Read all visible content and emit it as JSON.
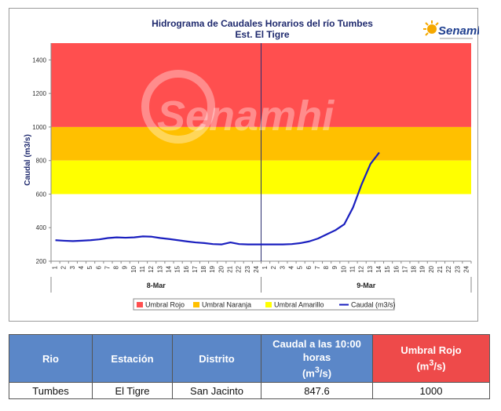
{
  "chart_data": {
    "type": "line",
    "title": "Hidrograma de Caudales Horarios del río Tumbes",
    "subtitle": "Est. El Tigre",
    "ylabel": "Caudal  (m3/s)",
    "ylim": [
      200,
      1500
    ],
    "yticks": [
      200,
      400,
      600,
      800,
      1000,
      1200,
      1400
    ],
    "day_labels": [
      "8-Mar",
      "9-Mar"
    ],
    "x_tick_labels": [
      "1",
      "2",
      "3",
      "4",
      "5",
      "6",
      "7",
      "8",
      "9",
      "10",
      "11",
      "12",
      "13",
      "14",
      "15",
      "16",
      "17",
      "18",
      "19",
      "20",
      "21",
      "22",
      "23",
      "24",
      "1",
      "2",
      "3",
      "4",
      "5",
      "6",
      "7",
      "8",
      "9",
      "10",
      "11",
      "12",
      "13",
      "14",
      "15",
      "16",
      "17",
      "18",
      "19",
      "20",
      "21",
      "22",
      "23",
      "24"
    ],
    "bands": [
      {
        "name": "Umbral Rojo",
        "from": 1000,
        "to": 1500,
        "color": "#ff4f4f"
      },
      {
        "name": "Umbral Naranja",
        "from": 800,
        "to": 1000,
        "color": "#ffc000"
      },
      {
        "name": "Umbral Amarillo",
        "from": 600,
        "to": 800,
        "color": "#ffff00"
      }
    ],
    "series": [
      {
        "name": "Caudal (m3/s)",
        "color": "#1a1fbf",
        "values": [
          325,
          322,
          320,
          322,
          325,
          330,
          338,
          342,
          340,
          342,
          348,
          346,
          338,
          332,
          325,
          318,
          312,
          308,
          302,
          300,
          312,
          302,
          300,
          300,
          300,
          300,
          300,
          302,
          308,
          318,
          335,
          360,
          385,
          420,
          520,
          660,
          780,
          848
        ]
      }
    ],
    "legend": [
      "Umbral Rojo",
      "Umbral Naranja",
      "Umbral Amarillo",
      "Caudal (m3/s)"
    ],
    "legend_position": "bottom"
  },
  "logo": {
    "name": "Senamhi",
    "watermark": "Senamhi"
  },
  "table": {
    "headers": [
      "Rio",
      "Estación",
      "Distrito",
      "Caudal a las 10:00 horas",
      "(m",
      "/s)",
      "Umbral Rojo",
      "(m",
      "/s)"
    ],
    "row": [
      "Tumbes",
      "El Tigre",
      "San Jacinto",
      "847.6",
      "1000"
    ],
    "colors": {
      "header": "#5b87c8",
      "header_red": "#ee4a4a"
    }
  }
}
